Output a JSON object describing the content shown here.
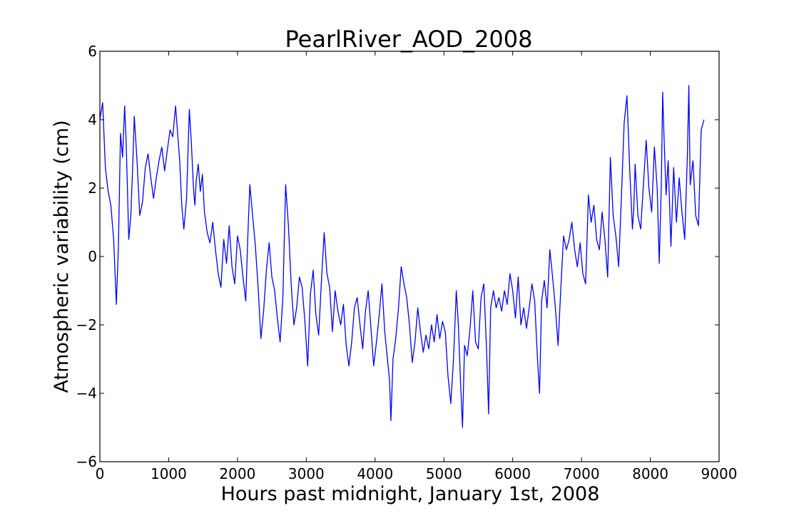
{
  "chart_data": {
    "type": "line",
    "title": "PearlRiver_AOD_2008",
    "xlabel": "Hours past midnight, January 1st, 2008",
    "ylabel": "Atmospheric variability (cm)",
    "xlim": [
      0,
      9000
    ],
    "ylim": [
      -6,
      6
    ],
    "xticks": [
      0,
      1000,
      2000,
      3000,
      4000,
      5000,
      6000,
      7000,
      8000,
      9000
    ],
    "yticks": [
      -6,
      -4,
      -2,
      0,
      2,
      4,
      6
    ],
    "xtick_labels": [
      "0",
      "1000",
      "2000",
      "3000",
      "4000",
      "5000",
      "6000",
      "7000",
      "8000",
      "9000"
    ],
    "ytick_labels": [
      "−6",
      "−4",
      "−2",
      "0",
      "2",
      "4",
      "6"
    ],
    "grid": false,
    "series": [
      {
        "color": "#0000ff",
        "x": [
          0,
          40,
          80,
          120,
          160,
          200,
          240,
          270,
          300,
          330,
          360,
          380,
          400,
          420,
          450,
          480,
          500,
          540,
          580,
          620,
          660,
          700,
          740,
          780,
          820,
          860,
          900,
          940,
          980,
          1020,
          1060,
          1100,
          1130,
          1160,
          1190,
          1220,
          1260,
          1300,
          1330,
          1360,
          1380,
          1400,
          1430,
          1460,
          1490,
          1520,
          1560,
          1600,
          1640,
          1680,
          1720,
          1760,
          1800,
          1840,
          1880,
          1920,
          1960,
          2000,
          2040,
          2080,
          2120,
          2150,
          2180,
          2220,
          2260,
          2300,
          2340,
          2380,
          2420,
          2460,
          2500,
          2540,
          2580,
          2620,
          2660,
          2700,
          2740,
          2780,
          2820,
          2860,
          2900,
          2940,
          2980,
          3020,
          3060,
          3100,
          3140,
          3180,
          3220,
          3260,
          3300,
          3340,
          3380,
          3420,
          3460,
          3500,
          3540,
          3580,
          3620,
          3660,
          3700,
          3740,
          3780,
          3820,
          3860,
          3900,
          3940,
          3980,
          4020,
          4060,
          4100,
          4140,
          4180,
          4210,
          4230,
          4260,
          4300,
          4340,
          4380,
          4420,
          4460,
          4500,
          4540,
          4580,
          4620,
          4660,
          4700,
          4740,
          4780,
          4820,
          4860,
          4900,
          4940,
          4980,
          5020,
          5060,
          5100,
          5140,
          5180,
          5210,
          5240,
          5270,
          5300,
          5340,
          5380,
          5420,
          5460,
          5500,
          5540,
          5580,
          5620,
          5650,
          5680,
          5720,
          5760,
          5800,
          5840,
          5880,
          5920,
          5960,
          6000,
          6040,
          6080,
          6120,
          6160,
          6200,
          6240,
          6280,
          6320,
          6360,
          6390,
          6420,
          6460,
          6500,
          6540,
          6580,
          6620,
          6660,
          6700,
          6740,
          6780,
          6820,
          6860,
          6900,
          6940,
          6980,
          7020,
          7060,
          7100,
          7140,
          7180,
          7220,
          7260,
          7300,
          7340,
          7380,
          7420,
          7460,
          7500,
          7540,
          7580,
          7620,
          7660,
          7700,
          7740,
          7760,
          7780,
          7820,
          7860,
          7900,
          7940,
          7980,
          8020,
          8060,
          8100,
          8130,
          8160,
          8180,
          8200,
          8230,
          8260,
          8300,
          8340,
          8380,
          8420,
          8460,
          8500,
          8540,
          8560,
          8580,
          8620,
          8660,
          8700,
          8740,
          8780
        ],
        "y": [
          4.0,
          4.5,
          2.6,
          1.9,
          1.5,
          0.5,
          -1.4,
          0.3,
          3.6,
          2.9,
          4.4,
          3.5,
          2.0,
          0.5,
          1.2,
          2.8,
          4.1,
          2.8,
          1.2,
          1.6,
          2.6,
          3.0,
          2.3,
          1.7,
          2.3,
          2.8,
          3.2,
          2.5,
          3.1,
          3.7,
          3.5,
          4.4,
          3.6,
          2.8,
          1.5,
          0.8,
          1.7,
          4.3,
          3.3,
          2.0,
          1.5,
          2.2,
          2.7,
          1.9,
          2.4,
          1.3,
          0.7,
          0.4,
          1.0,
          0.2,
          -0.5,
          -0.9,
          0.5,
          -0.2,
          0.9,
          -0.3,
          -0.8,
          0.6,
          0.2,
          -0.6,
          -1.3,
          0.6,
          2.1,
          1.2,
          0.3,
          -0.9,
          -2.4,
          -1.6,
          -0.4,
          0.4,
          -0.6,
          -1.0,
          -1.8,
          -2.5,
          -1.2,
          2.1,
          0.9,
          -0.8,
          -2.0,
          -1.5,
          -0.6,
          -0.9,
          -1.9,
          -3.2,
          -1.1,
          -0.4,
          -1.7,
          -2.3,
          -0.7,
          0.7,
          -0.5,
          -0.9,
          -2.2,
          -1.0,
          -1.6,
          -2.0,
          -1.4,
          -2.6,
          -3.2,
          -2.5,
          -1.5,
          -1.2,
          -2.0,
          -2.7,
          -1.6,
          -1.0,
          -2.1,
          -3.2,
          -2.5,
          -1.7,
          -0.8,
          -2.2,
          -3.0,
          -3.6,
          -4.8,
          -3.0,
          -2.4,
          -1.5,
          -0.3,
          -0.8,
          -1.2,
          -2.0,
          -3.1,
          -2.5,
          -1.5,
          -2.2,
          -2.8,
          -2.3,
          -2.7,
          -2.0,
          -2.5,
          -1.7,
          -2.4,
          -1.9,
          -2.2,
          -3.5,
          -4.3,
          -3.0,
          -1.0,
          -2.0,
          -3.6,
          -5.0,
          -2.6,
          -2.9,
          -2.1,
          -1.0,
          -2.5,
          -2.7,
          -1.2,
          -0.8,
          -2.7,
          -4.6,
          -1.5,
          -1.0,
          -1.5,
          -1.2,
          -1.6,
          -1.0,
          -1.4,
          -0.5,
          -1.0,
          -1.8,
          -0.6,
          -2.0,
          -1.5,
          -2.1,
          -1.5,
          -0.8,
          -1.3,
          -3.0,
          -4.0,
          -1.3,
          -0.7,
          -1.5,
          0.2,
          -0.6,
          -1.5,
          -2.6,
          -0.9,
          0.6,
          0.2,
          0.5,
          1.0,
          0.2,
          -0.3,
          0.4,
          -0.5,
          -0.8,
          1.8,
          1.0,
          1.5,
          0.5,
          0.2,
          1.3,
          0.5,
          -0.6,
          2.9,
          1.2,
          0.6,
          -0.3,
          1.7,
          3.9,
          4.7,
          2.6,
          0.8,
          1.4,
          2.7,
          1.2,
          0.8,
          2.1,
          3.4,
          2.0,
          1.3,
          3.2,
          2.0,
          -0.2,
          2.1,
          4.8,
          3.5,
          1.8,
          2.8,
          0.3,
          2.6,
          1.0,
          2.3,
          1.3,
          0.5,
          3.0,
          5.0,
          2.1,
          2.8,
          1.2,
          0.9,
          3.7,
          4.0
        ]
      }
    ]
  }
}
